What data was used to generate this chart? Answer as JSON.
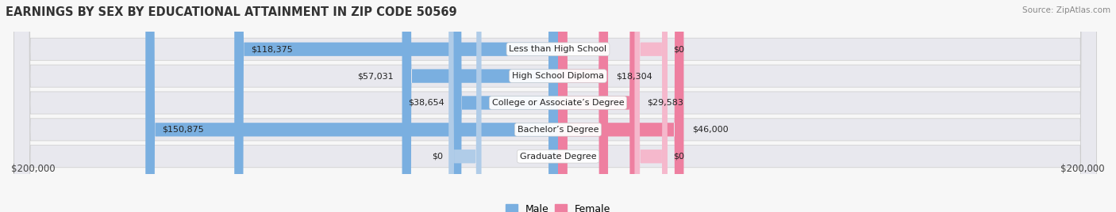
{
  "title": "EARNINGS BY SEX BY EDUCATIONAL ATTAINMENT IN ZIP CODE 50569",
  "source": "Source: ZipAtlas.com",
  "categories": [
    "Less than High School",
    "High School Diploma",
    "College or Associate’s Degree",
    "Bachelor’s Degree",
    "Graduate Degree"
  ],
  "male_values": [
    118375,
    57031,
    38654,
    150875,
    0
  ],
  "female_values": [
    0,
    18304,
    29583,
    46000,
    0
  ],
  "male_color": "#7aafe0",
  "female_color": "#ee7fa0",
  "male_color_zero": "#b0cce8",
  "female_color_zero": "#f5b8cc",
  "axis_max": 200000,
  "bg_color": "#f7f7f7",
  "row_bg": "#e4e4ea",
  "row_bg_alt": "#ececf2",
  "title_fontsize": 10.5,
  "label_fontsize": 8,
  "value_fontsize": 8,
  "tick_fontsize": 8.5,
  "legend_fontsize": 9
}
